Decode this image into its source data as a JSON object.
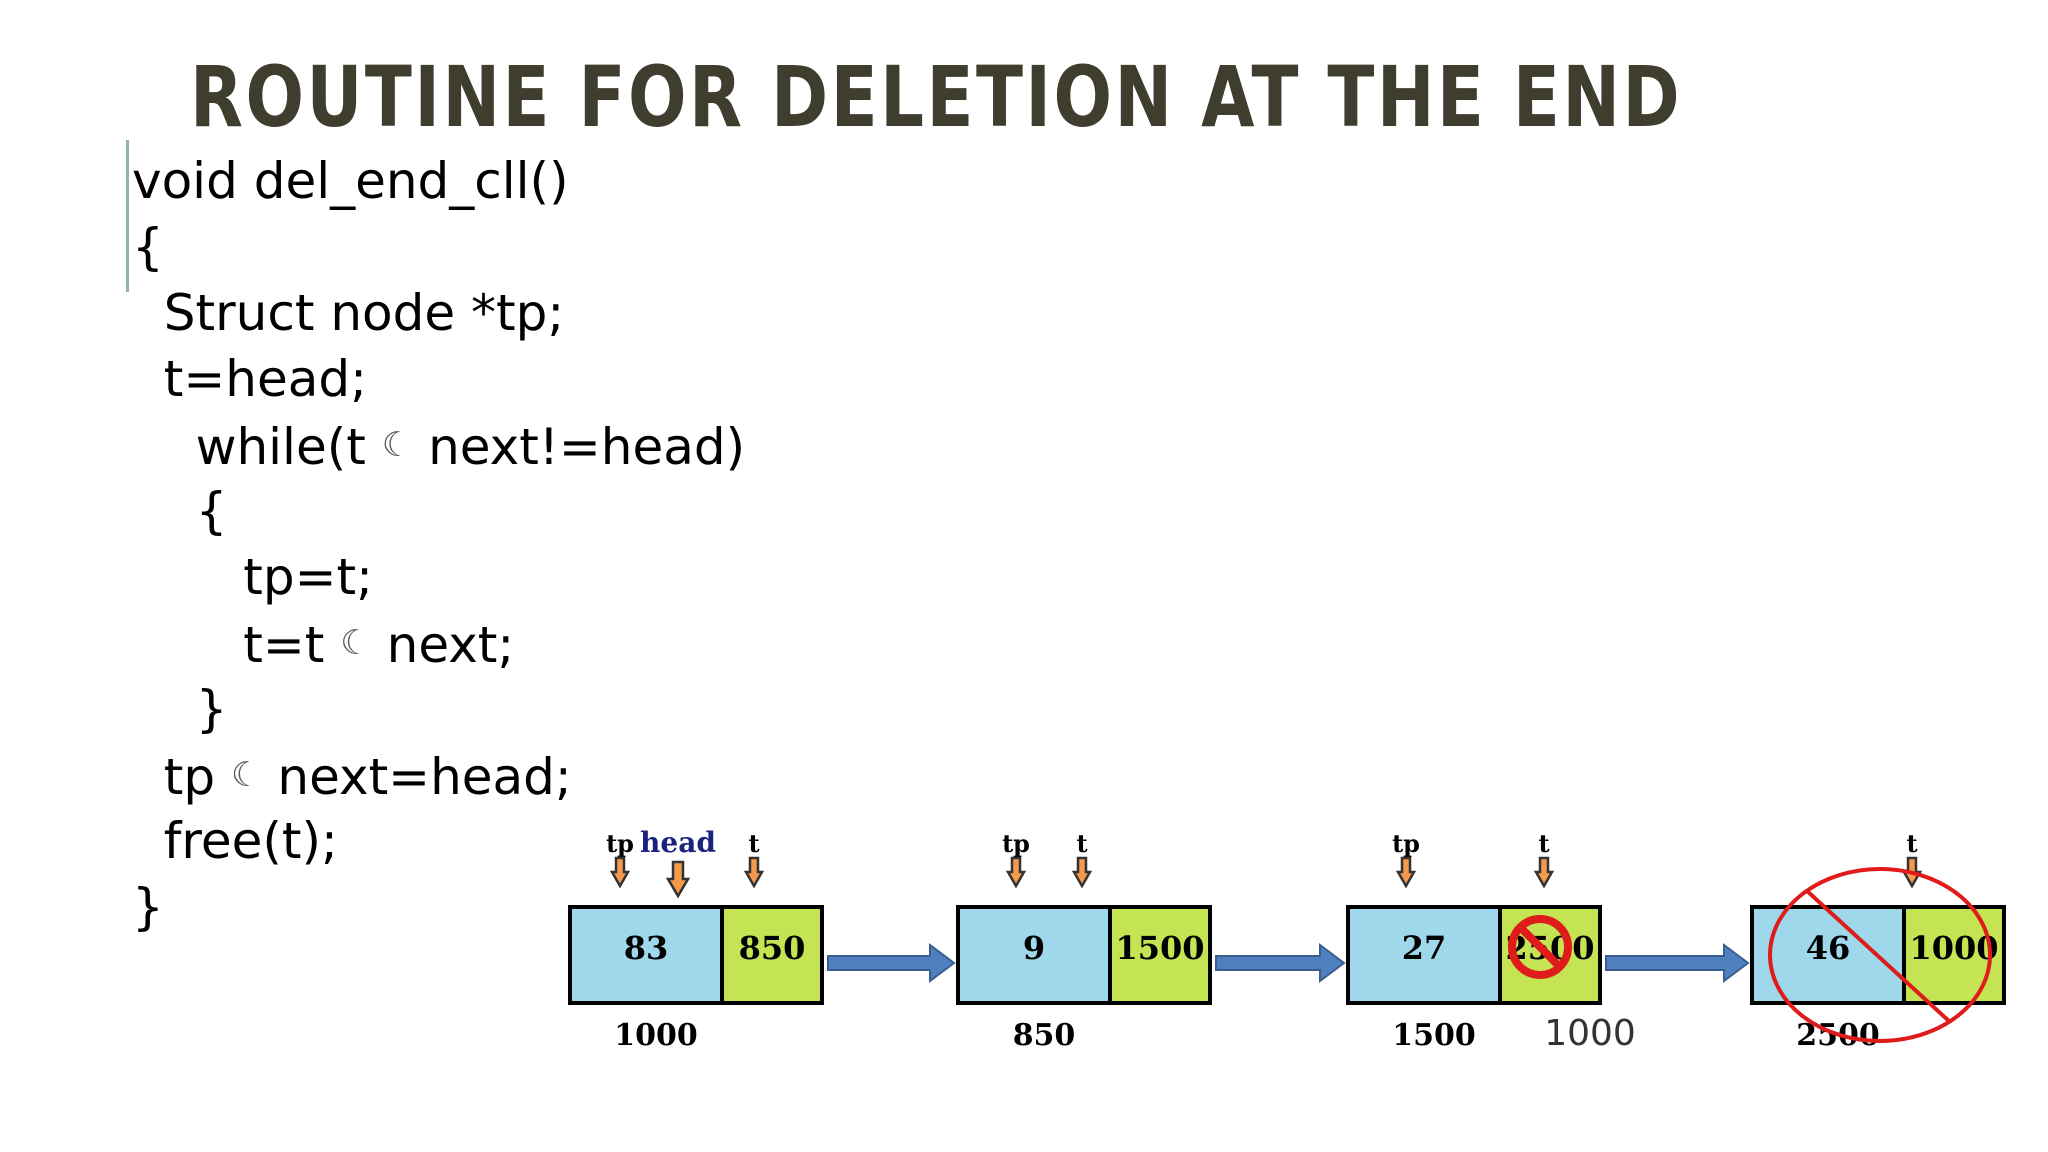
{
  "slide": {
    "title": "ROUTINE FOR DELETION AT THE END"
  },
  "code": {
    "lines": [
      {
        "pre": "void del_end_cll()",
        "post": ""
      },
      {
        "pre": "{",
        "post": ""
      },
      {
        "pre": "  Struct node *tp;",
        "post": ""
      },
      {
        "pre": "  t=head;",
        "post": ""
      },
      {
        "pre": "    while(t ",
        "post": " next!=head)"
      },
      {
        "pre": "    {",
        "post": ""
      },
      {
        "pre": "       tp=t;",
        "post": ""
      },
      {
        "pre": "       t=t ",
        "post": " next;"
      },
      {
        "pre": "    }",
        "post": ""
      },
      {
        "pre": "  tp ",
        "post": " next=head;"
      },
      {
        "pre": "  free(t);",
        "post": ""
      },
      {
        "pre": "}",
        "post": ""
      }
    ],
    "arrow_glyph": "☾"
  },
  "diagram": {
    "nodes": [
      {
        "data": "83",
        "next": "850",
        "address": "1000",
        "pointers": [
          "tp",
          "head",
          "t"
        ]
      },
      {
        "data": "9",
        "next": "1500",
        "address": "850",
        "pointers": [
          "tp",
          "t"
        ]
      },
      {
        "data": "27",
        "next": "2500",
        "address": "1500",
        "new_next": "1000",
        "pointers": [
          "tp",
          "t"
        ]
      },
      {
        "data": "46",
        "next": "1000",
        "address": "2500",
        "pointers": [
          "t"
        ]
      }
    ],
    "colors": {
      "data_cell": "#9fd8ea",
      "next_cell": "#c4e454",
      "link_arrow": "#4f7fbf",
      "pointer_arrow": "#f59a4c",
      "delete_mark": "#e01b1b"
    }
  }
}
